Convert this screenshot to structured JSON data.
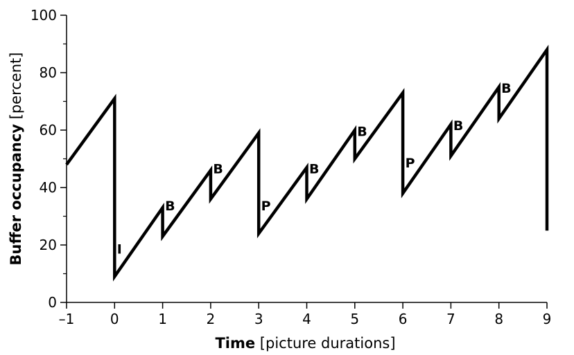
{
  "chart_data": {
    "type": "line",
    "title": "",
    "xlabel_bold": "Time",
    "xlabel_rest": " [picture durations]",
    "ylabel_bold": "Buffer occupancy",
    "ylabel_rest": " [percent]",
    "xlim": [
      -1,
      9
    ],
    "ylim": [
      0,
      100
    ],
    "x_ticks": [
      -1,
      0,
      1,
      2,
      3,
      4,
      5,
      6,
      7,
      8,
      9
    ],
    "x_tick_labels": [
      "–1",
      "0",
      "1",
      "2",
      "3",
      "4",
      "5",
      "6",
      "7",
      "8",
      "9"
    ],
    "y_ticks": [
      0,
      20,
      40,
      60,
      80,
      100
    ],
    "y_tick_labels": [
      "0",
      "20",
      "40",
      "60",
      "80",
      "100"
    ],
    "y_minor_ticks": [
      10,
      30,
      50,
      70,
      90
    ],
    "grid": false,
    "series": [
      {
        "x": [
          -1,
          0,
          0,
          1,
          1,
          2,
          2,
          3,
          3,
          4,
          4,
          5,
          5,
          6,
          6,
          7,
          7,
          8,
          8,
          9,
          9
        ],
        "y": [
          48,
          71,
          9,
          33,
          23,
          46,
          36,
          59,
          24,
          47,
          36,
          60,
          50,
          73,
          38,
          62,
          51,
          75,
          64,
          88,
          25
        ],
        "color": "#000000"
      }
    ],
    "annotations": [
      {
        "text": "I",
        "x": 0.05,
        "y": 17
      },
      {
        "text": "B",
        "x": 1.05,
        "y": 32
      },
      {
        "text": "B",
        "x": 2.05,
        "y": 45
      },
      {
        "text": "P",
        "x": 3.05,
        "y": 32
      },
      {
        "text": "B",
        "x": 4.05,
        "y": 45
      },
      {
        "text": "B",
        "x": 5.05,
        "y": 58
      },
      {
        "text": "P",
        "x": 6.05,
        "y": 47
      },
      {
        "text": "B",
        "x": 7.05,
        "y": 60
      },
      {
        "text": "B",
        "x": 8.05,
        "y": 73
      }
    ]
  }
}
